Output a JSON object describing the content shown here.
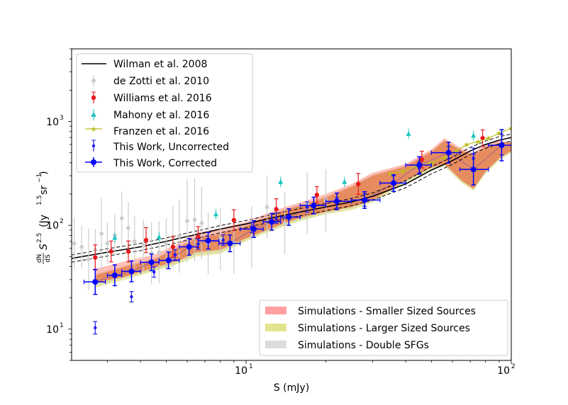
{
  "chart_data": {
    "type": "scatter",
    "xscale": "log",
    "yscale": "log",
    "xlim": [
      2.2,
      100
    ],
    "ylim": [
      5,
      5000
    ],
    "xlabel": "S (mJy)",
    "ylabel_main": "(Jy",
    "ylabel_sup15": "1.5",
    "ylabel_sr": "sr",
    "ylabel_supm1": "−1",
    "ylabel_close": ")",
    "ylabel_frac_num": "dN",
    "ylabel_frac_den": "dS",
    "ylabel_S": "S",
    "ylabel_sup25": "2.5",
    "x_tick_labels": [
      {
        "value": 10,
        "base": "10",
        "exp": "1"
      },
      {
        "value": 100,
        "base": "10",
        "exp": "2"
      }
    ],
    "y_tick_labels": [
      {
        "value": 10,
        "base": "10",
        "exp": "1"
      },
      {
        "value": 100,
        "base": "10",
        "exp": "2"
      },
      {
        "value": 1000,
        "base": "10",
        "exp": "3"
      }
    ],
    "legend_top": {
      "position": "top-left",
      "entries": [
        {
          "label": "Wilman et al. 2008",
          "color": "#000000",
          "marker": "line"
        },
        {
          "label": "de Zotti et al. 2010",
          "color": "#cccccc",
          "marker": "dot"
        },
        {
          "label": "Williams et al. 2016",
          "color": "#e8191c",
          "marker": "dot"
        },
        {
          "label": "Mahony et al. 2016",
          "color": "#1fc4c0",
          "marker": "triangle"
        },
        {
          "label": "Franzen et al. 2016",
          "color": "#bcbd22",
          "marker": "star"
        },
        {
          "label": "This Work, Uncorrected",
          "color": "#1f1fe8",
          "marker": "small-dot"
        },
        {
          "label": "This Work, Corrected",
          "color": "#0000ff",
          "marker": "big-dot"
        }
      ]
    },
    "legend_bottom": {
      "position": "lower-right",
      "entries": [
        {
          "label": "Simulations - Smaller Sized Sources",
          "color": "#ff9f9f"
        },
        {
          "label": "Simulations - Larger Sized Sources",
          "color": "#e3e38e"
        },
        {
          "label": "Simulations - Double SFGs",
          "color": "#dcdcdc"
        }
      ]
    },
    "series": {
      "wilman": {
        "x": [
          2.2,
          3,
          4,
          5,
          6,
          7,
          8,
          10,
          12,
          15,
          20,
          25,
          30,
          40,
          50,
          60,
          70,
          80,
          90,
          100
        ],
        "y": [
          48,
          55,
          62,
          70,
          78,
          85,
          92,
          103,
          115,
          130,
          150,
          168,
          190,
          250,
          340,
          420,
          520,
          600,
          660,
          700
        ],
        "upper_factor": 1.08,
        "lower_factor": 0.92
      },
      "dezotti": {
        "x": [
          2.25,
          2.4,
          2.55,
          2.7,
          2.85,
          3.0,
          3.2,
          3.4,
          3.6,
          3.8,
          4.1,
          4.4,
          4.7,
          5.0,
          5.3,
          5.6,
          6.0,
          6.4,
          6.8,
          7.2,
          8.0,
          9.0,
          10.5,
          12.0,
          14.0,
          17.0,
          20.0
        ],
        "y": [
          67,
          62,
          47,
          58,
          83,
          67,
          80,
          117,
          94,
          70,
          64,
          54,
          55,
          66,
          77,
          78,
          110,
          113,
          105,
          67,
          74,
          68,
          77,
          150,
          104,
          163,
          174
        ],
        "err": [
          0.25,
          0.2,
          0.3,
          0.2,
          0.35,
          0.2,
          0.2,
          0.25,
          0.25,
          0.25,
          0.25,
          0.3,
          0.3,
          0.25,
          0.3,
          0.35,
          0.4,
          0.4,
          0.35,
          0.3,
          0.3,
          0.3,
          0.3,
          0.3,
          0.3,
          0.3,
          0.3
        ]
      },
      "williams": {
        "x": [
          2.7,
          3.1,
          3.6,
          4.2,
          5.3,
          6.6,
          9.0,
          13.0,
          18.5,
          26.5,
          46.0,
          78.0
        ],
        "y": [
          49,
          56,
          56,
          72,
          62,
          77,
          112,
          143,
          196,
          250,
          430,
          690
        ],
        "err": [
          0.12,
          0.1,
          0.1,
          0.12,
          0.1,
          0.1,
          0.1,
          0.1,
          0.08,
          0.1,
          0.08,
          0.08
        ]
      },
      "mahony": {
        "x": [
          3.2,
          4.7,
          7.7,
          13.5,
          23.5,
          41.0,
          72.0
        ],
        "y": [
          76,
          77,
          128,
          262,
          262,
          760,
          730
        ],
        "err": [
          0.05,
          0.05,
          0.05,
          0.05,
          0.05,
          0.05,
          0.05
        ]
      },
      "franzen": {
        "x": [
          35,
          39,
          44,
          50,
          56,
          62,
          68,
          75,
          82,
          90,
          100
        ],
        "y": [
          315,
          330,
          370,
          400,
          450,
          520,
          600,
          640,
          690,
          770,
          860
        ]
      },
      "uncorrected": {
        "x": [
          2.7,
          3.7,
          4.5,
          5.4,
          6.6,
          8.2,
          10.5,
          13.0,
          17.0,
          22.0,
          28.0,
          36.0,
          45.0,
          58.0,
          72.0,
          92.0
        ],
        "y": [
          10.3,
          20.5,
          35.5,
          52,
          66,
          72,
          95,
          117,
          150,
          165,
          175,
          260,
          355,
          500,
          440,
          600
        ],
        "err": [
          0.06,
          0.05,
          0.05,
          0.05,
          0.05,
          0.05,
          0.05,
          0.05,
          0.05,
          0.05,
          0.06,
          0.06,
          0.06,
          0.06,
          0.1,
          0.1
        ]
      },
      "corrected": {
        "x": [
          2.7,
          3.2,
          3.7,
          4.4,
          5.1,
          6.1,
          7.2,
          8.7,
          10.7,
          12.5,
          14.5,
          18.0,
          22.0,
          28.0,
          36.0,
          45.0,
          58.0,
          72.0,
          92.0
        ],
        "y": [
          28.5,
          33,
          36,
          44,
          46,
          62,
          71,
          67,
          92,
          108,
          120,
          155,
          170,
          175,
          255,
          380,
          500,
          345,
          590
        ],
        "xlo": [
          2.45,
          3.0,
          3.4,
          4.0,
          4.7,
          5.6,
          6.6,
          7.9,
          9.5,
          11.6,
          13.5,
          16.0,
          20.0,
          25.0,
          32.0,
          40.0,
          50.0,
          64.0,
          82.0
        ],
        "xhi": [
          2.95,
          3.4,
          4.0,
          4.7,
          5.6,
          6.6,
          7.9,
          9.5,
          11.6,
          13.5,
          16.0,
          20.0,
          25.0,
          32.0,
          40.0,
          50.0,
          64.0,
          82.0,
          100.0
        ],
        "err": [
          0.12,
          0.1,
          0.1,
          0.08,
          0.08,
          0.08,
          0.08,
          0.08,
          0.08,
          0.08,
          0.08,
          0.08,
          0.08,
          0.08,
          0.08,
          0.08,
          0.1,
          0.15,
          0.15
        ]
      },
      "sim_small": {
        "x": [
          2.7,
          3.5,
          4.5,
          5.5,
          6.5,
          8,
          10,
          12,
          14,
          16,
          20,
          25,
          30,
          40,
          50,
          56,
          65,
          72,
          80,
          90,
          100
        ],
        "lo": [
          28,
          32,
          39,
          45,
          55,
          58,
          75,
          90,
          105,
          118,
          135,
          150,
          175,
          270,
          360,
          390,
          270,
          225,
          330,
          440,
          520
        ],
        "hi": [
          38,
          45,
          52,
          66,
          85,
          93,
          108,
          130,
          150,
          165,
          200,
          250,
          320,
          390,
          540,
          690,
          550,
          500,
          600,
          650,
          640
        ]
      },
      "sim_large": {
        "x": [
          2.7,
          3.5,
          4.5,
          5.5,
          6.5,
          8,
          10,
          12,
          14,
          16,
          20,
          25,
          30,
          40,
          50,
          56,
          65,
          72,
          80,
          90,
          100
        ],
        "lo": [
          25,
          30,
          36,
          42,
          50,
          53,
          70,
          85,
          98,
          110,
          128,
          140,
          165,
          255,
          340,
          370,
          255,
          215,
          315,
          420,
          500
        ],
        "hi": [
          33,
          40,
          47,
          60,
          75,
          82,
          98,
          120,
          140,
          155,
          185,
          235,
          300,
          370,
          510,
          650,
          520,
          470,
          570,
          620,
          620
        ]
      },
      "sim_double": {
        "x": [
          2.7,
          3.5,
          4.5,
          5.5,
          6.5,
          8,
          10,
          12,
          14,
          16,
          20,
          25,
          30,
          40,
          50,
          56,
          65,
          72,
          80,
          90,
          100
        ],
        "lo": [
          26,
          31,
          37,
          43,
          52,
          55,
          72,
          87,
          100,
          112,
          130,
          145,
          168,
          260,
          345,
          375,
          262,
          220,
          320,
          430,
          510
        ],
        "hi": [
          34,
          41,
          48,
          62,
          78,
          86,
          102,
          124,
          144,
          158,
          190,
          240,
          308,
          378,
          520,
          660,
          530,
          480,
          580,
          630,
          630
        ]
      }
    }
  }
}
